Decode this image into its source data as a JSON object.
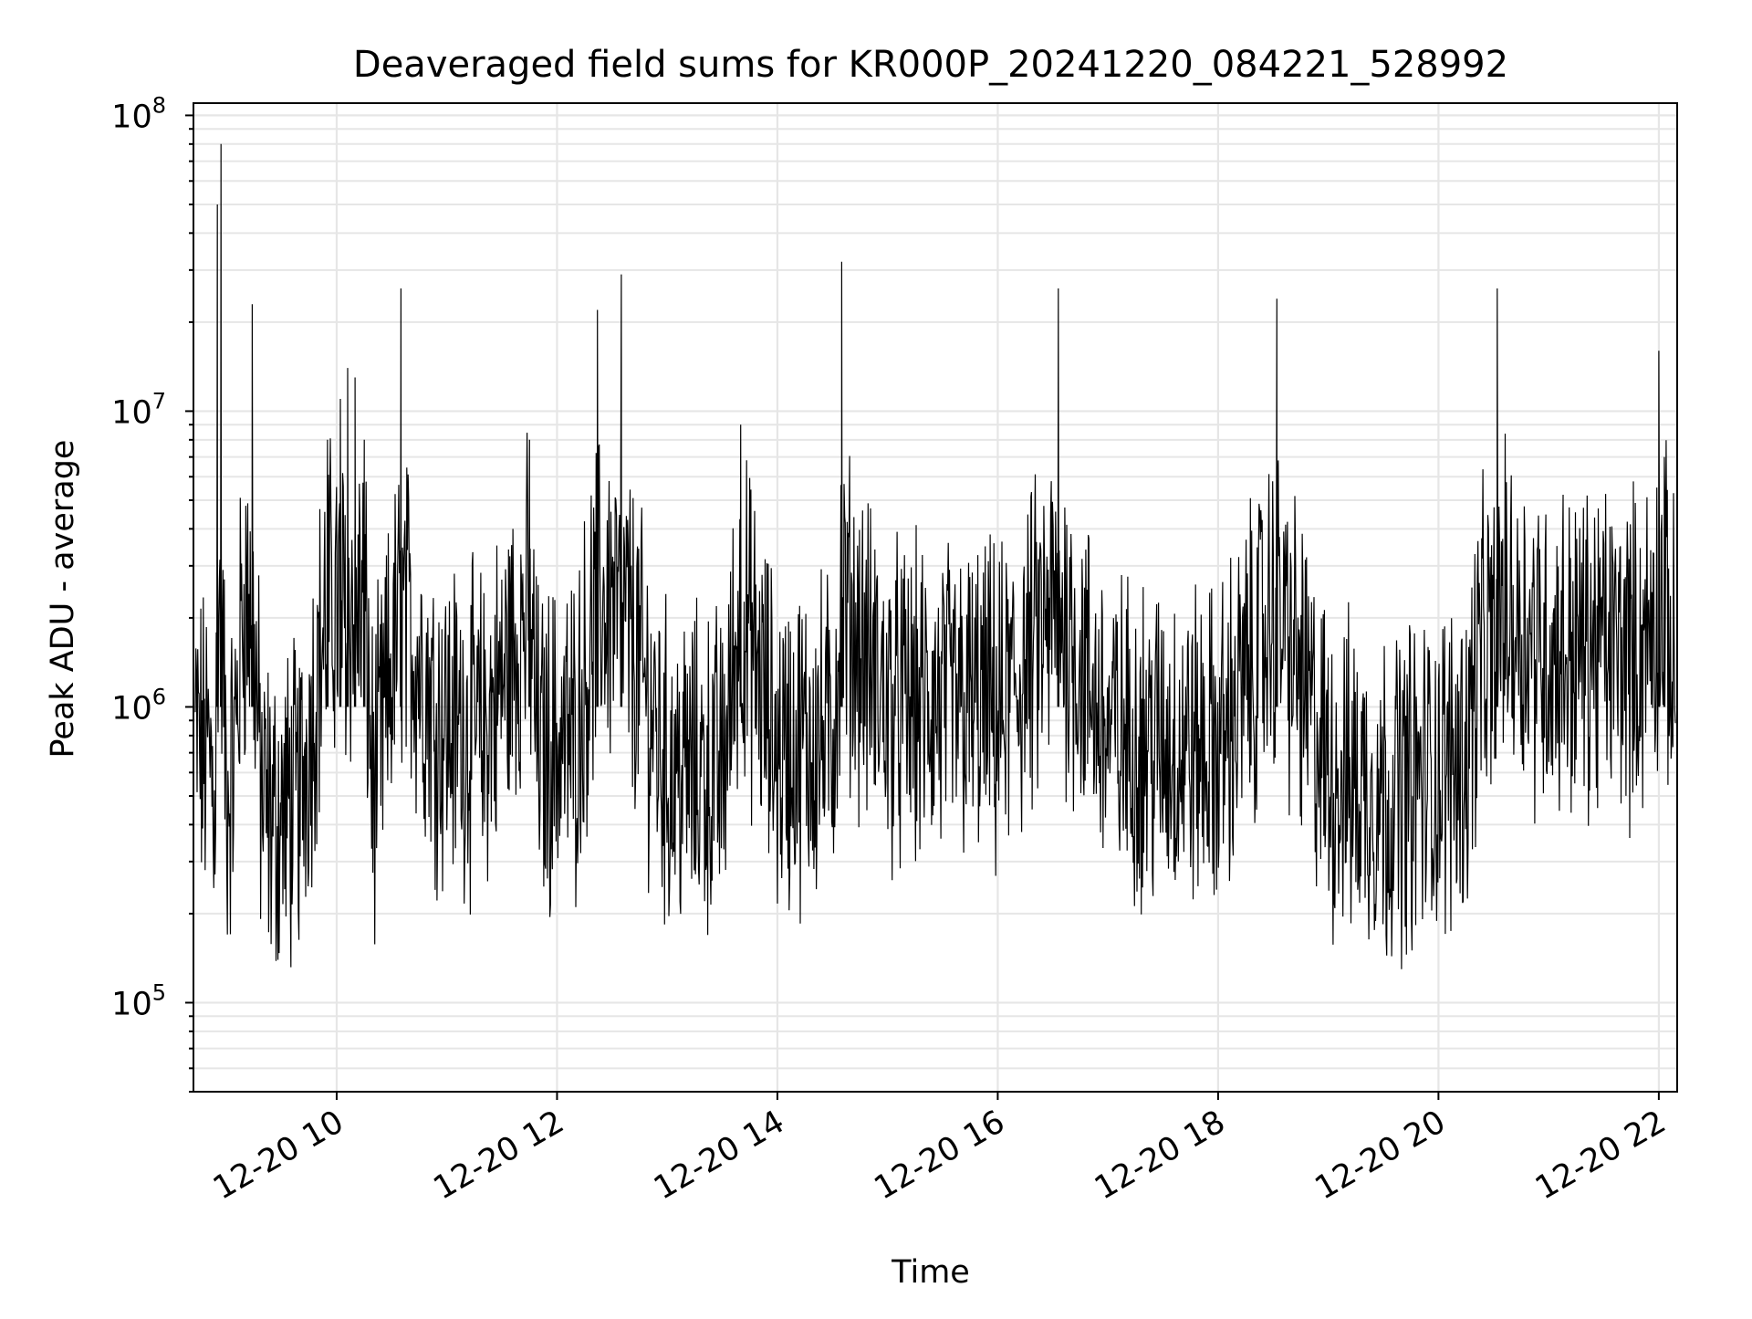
{
  "chart_data": {
    "type": "line",
    "title": "Deaveraged field sums for KR000P_20241220_084221_528992",
    "xlabel": "Time",
    "ylabel": "Peak ADU - average",
    "y_scale": "log",
    "ylim": [
      50000,
      110000000
    ],
    "xlim": [
      "2024-12-20 08:42",
      "2024-12-20 22:10"
    ],
    "grid": true,
    "line_color": "#000000",
    "grid_color": "#e6e6e6",
    "x_ticks": [
      {
        "t": "2024-12-20 10:00",
        "label": "12-20 10"
      },
      {
        "t": "2024-12-20 12:00",
        "label": "12-20 12"
      },
      {
        "t": "2024-12-20 14:00",
        "label": "12-20 14"
      },
      {
        "t": "2024-12-20 16:00",
        "label": "12-20 16"
      },
      {
        "t": "2024-12-20 18:00",
        "label": "12-20 18"
      },
      {
        "t": "2024-12-20 20:00",
        "label": "12-20 20"
      },
      {
        "t": "2024-12-20 22:00",
        "label": "12-20 22"
      }
    ],
    "y_ticks": [
      {
        "value": 100000,
        "base": "10",
        "exp": "5"
      },
      {
        "value": 1000000,
        "base": "10",
        "exp": "6"
      },
      {
        "value": 10000000,
        "base": "10",
        "exp": "7"
      },
      {
        "value": 100000000,
        "base": "10",
        "exp": "8"
      }
    ],
    "series": [
      {
        "x": [
          "2024-12-20 08:43",
          "2024-12-20 08:47",
          "2024-12-20 08:52",
          "2024-12-20 08:54",
          "2024-12-20 08:55",
          "2024-12-20 08:57",
          "2024-12-20 09:00",
          "2024-12-20 09:04",
          "2024-12-20 09:09",
          "2024-12-20 09:14",
          "2024-12-20 09:19",
          "2024-12-20 09:25",
          "2024-12-20 09:40",
          "2024-12-20 09:55",
          "2024-12-20 10:02",
          "2024-12-20 10:06",
          "2024-12-20 10:10",
          "2024-12-20 10:15",
          "2024-12-20 10:20",
          "2024-12-20 10:35",
          "2024-12-20 10:55",
          "2024-12-20 11:20",
          "2024-12-20 11:45",
          "2024-12-20 11:50",
          "2024-12-20 12:10",
          "2024-12-20 12:22",
          "2024-12-20 12:35",
          "2024-12-20 13:00",
          "2024-12-20 13:30",
          "2024-12-20 13:40",
          "2024-12-20 14:00",
          "2024-12-20 14:30",
          "2024-12-20 14:35",
          "2024-12-20 15:00",
          "2024-12-20 15:30",
          "2024-12-20 15:55",
          "2024-12-20 16:00",
          "2024-12-20 16:33",
          "2024-12-20 17:00",
          "2024-12-20 17:30",
          "2024-12-20 18:00",
          "2024-12-20 18:32",
          "2024-12-20 19:00",
          "2024-12-20 19:30",
          "2024-12-20 20:00",
          "2024-12-20 20:15",
          "2024-12-20 20:22",
          "2024-12-20 20:30",
          "2024-12-20 20:32",
          "2024-12-20 21:00",
          "2024-12-20 21:30",
          "2024-12-20 21:50",
          "2024-12-20 22:00",
          "2024-12-20 22:03",
          "2024-12-20 22:08"
        ],
        "y": [
          800000,
          700000,
          650000,
          500000,
          50000000,
          80000000,
          500000,
          650000,
          3000000,
          23000000,
          500000,
          400000,
          500000,
          8000000,
          11000000,
          14000000,
          13000000,
          8000000,
          500000,
          26000000,
          900000,
          800000,
          8000000,
          700000,
          800000,
          22000000,
          29000000,
          600000,
          600000,
          9000000,
          700000,
          800000,
          32000000,
          1000000,
          1000000,
          1000000,
          900000,
          26000000,
          800000,
          750000,
          700000,
          24000000,
          600000,
          500000,
          600000,
          700000,
          1500000,
          1500000,
          26000000,
          1500000,
          1600000,
          1500000,
          16000000,
          7000000,
          1300000
        ]
      }
    ]
  }
}
